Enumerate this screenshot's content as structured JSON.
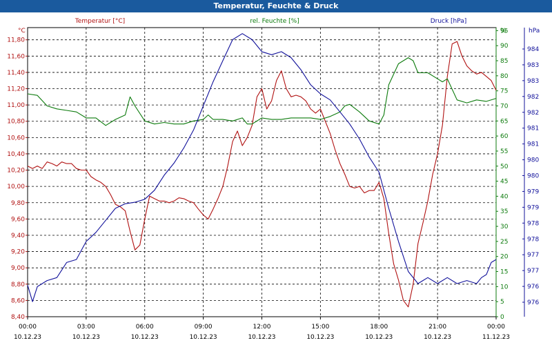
{
  "window": {
    "title": "Temperatur, Feuchte & Druck"
  },
  "colors": {
    "temperature": "#b01010",
    "humidity": "#0b7a0b",
    "pressure": "#10109a",
    "titlebar": "#1a5a9e"
  },
  "chart_data": {
    "type": "line",
    "title": "Temperatur, Feuchte & Druck",
    "grid": true,
    "x_ticks": [
      {
        "time": "00:00",
        "date": "10.12.23"
      },
      {
        "time": "03:00",
        "date": "10.12.23"
      },
      {
        "time": "06:00",
        "date": "10.12.23"
      },
      {
        "time": "09:00",
        "date": "10.12.23"
      },
      {
        "time": "12:00",
        "date": "10.12.23"
      },
      {
        "time": "15:00",
        "date": "10.12.23"
      },
      {
        "time": "18:00",
        "date": "10.12.23"
      },
      {
        "time": "21:00",
        "date": "10.12.23"
      },
      {
        "time": "00:00",
        "date": "11.12.23"
      }
    ],
    "axes": {
      "temperature": {
        "unit": "°C",
        "ylim": [
          8.4,
          11.95
        ],
        "ticks": [
          "8,40",
          "8,60",
          "8,80",
          "9,00",
          "9,20",
          "9,40",
          "9,60",
          "9,80",
          "10,00",
          "10,20",
          "10,40",
          "10,60",
          "10,80",
          "11,00",
          "11,20",
          "11,40",
          "11,60",
          "11,80"
        ]
      },
      "humidity": {
        "unit": "%",
        "ylim": [
          0,
          96
        ],
        "ticks": [
          "0",
          "5",
          "10",
          "15",
          "20",
          "25",
          "30",
          "35",
          "40",
          "45",
          "50",
          "55",
          "60",
          "65",
          "70",
          "75",
          "80",
          "85",
          "90",
          "95"
        ]
      },
      "pressure": {
        "unit": "hPa",
        "ticks": [
          "976",
          "976",
          "977",
          "977",
          "978",
          "978",
          "979",
          "979",
          "980",
          "980",
          "981",
          "981",
          "982",
          "982",
          "983",
          "983",
          "984"
        ]
      }
    },
    "series": [
      {
        "name": "Temperatur [°C]",
        "axis": "temperature",
        "points": [
          [
            0,
            10.25
          ],
          [
            0.25,
            10.22
          ],
          [
            0.5,
            10.25
          ],
          [
            0.75,
            10.22
          ],
          [
            1,
            10.3
          ],
          [
            1.25,
            10.28
          ],
          [
            1.5,
            10.25
          ],
          [
            1.75,
            10.3
          ],
          [
            2,
            10.28
          ],
          [
            2.25,
            10.28
          ],
          [
            2.5,
            10.22
          ],
          [
            2.75,
            10.2
          ],
          [
            3,
            10.2
          ],
          [
            3.25,
            10.12
          ],
          [
            3.5,
            10.08
          ],
          [
            3.75,
            10.05
          ],
          [
            4,
            10.0
          ],
          [
            4.25,
            9.9
          ],
          [
            4.5,
            9.78
          ],
          [
            4.75,
            9.75
          ],
          [
            5,
            9.7
          ],
          [
            5.25,
            9.45
          ],
          [
            5.5,
            9.22
          ],
          [
            5.75,
            9.28
          ],
          [
            6,
            9.6
          ],
          [
            6.25,
            9.88
          ],
          [
            6.5,
            9.85
          ],
          [
            6.75,
            9.82
          ],
          [
            7,
            9.82
          ],
          [
            7.25,
            9.8
          ],
          [
            7.5,
            9.82
          ],
          [
            7.75,
            9.86
          ],
          [
            8,
            9.85
          ],
          [
            8.25,
            9.82
          ],
          [
            8.5,
            9.8
          ],
          [
            8.75,
            9.72
          ],
          [
            9,
            9.65
          ],
          [
            9.25,
            9.6
          ],
          [
            9.5,
            9.72
          ],
          [
            9.75,
            9.85
          ],
          [
            10,
            10.0
          ],
          [
            10.25,
            10.25
          ],
          [
            10.5,
            10.55
          ],
          [
            10.75,
            10.68
          ],
          [
            11,
            10.5
          ],
          [
            11.25,
            10.6
          ],
          [
            11.5,
            10.75
          ],
          [
            11.75,
            11.1
          ],
          [
            12,
            11.2
          ],
          [
            12.25,
            10.95
          ],
          [
            12.5,
            11.05
          ],
          [
            12.75,
            11.3
          ],
          [
            13,
            11.42
          ],
          [
            13.25,
            11.2
          ],
          [
            13.5,
            11.1
          ],
          [
            13.75,
            11.12
          ],
          [
            14,
            11.1
          ],
          [
            14.25,
            11.05
          ],
          [
            14.5,
            10.95
          ],
          [
            14.75,
            10.9
          ],
          [
            15,
            10.95
          ],
          [
            15.25,
            10.8
          ],
          [
            15.5,
            10.65
          ],
          [
            15.75,
            10.45
          ],
          [
            16,
            10.28
          ],
          [
            16.25,
            10.15
          ],
          [
            16.5,
            10.0
          ],
          [
            16.75,
            9.98
          ],
          [
            17,
            10.0
          ],
          [
            17.25,
            9.92
          ],
          [
            17.5,
            9.95
          ],
          [
            17.75,
            9.95
          ],
          [
            18,
            10.05
          ],
          [
            18.25,
            9.85
          ],
          [
            18.5,
            9.42
          ],
          [
            18.75,
            9.05
          ],
          [
            19,
            8.85
          ],
          [
            19.25,
            8.6
          ],
          [
            19.5,
            8.52
          ],
          [
            19.75,
            8.8
          ],
          [
            20,
            9.3
          ],
          [
            20.25,
            9.55
          ],
          [
            20.5,
            9.82
          ],
          [
            20.75,
            10.15
          ],
          [
            21,
            10.4
          ],
          [
            21.25,
            10.75
          ],
          [
            21.5,
            11.35
          ],
          [
            21.75,
            11.75
          ],
          [
            22,
            11.78
          ],
          [
            22.25,
            11.6
          ],
          [
            22.5,
            11.48
          ],
          [
            22.75,
            11.42
          ],
          [
            23,
            11.38
          ],
          [
            23.25,
            11.4
          ],
          [
            23.5,
            11.35
          ],
          [
            23.75,
            11.3
          ],
          [
            24,
            11.18
          ]
        ]
      },
      {
        "name": "rel. Feuchte [%]",
        "axis": "humidity",
        "points": [
          [
            0,
            74
          ],
          [
            0.5,
            73.5
          ],
          [
            1,
            70
          ],
          [
            1.5,
            69
          ],
          [
            2,
            68.5
          ],
          [
            2.5,
            68
          ],
          [
            3,
            66
          ],
          [
            3.5,
            66
          ],
          [
            4,
            63.5
          ],
          [
            4.5,
            65.5
          ],
          [
            5,
            67
          ],
          [
            5.25,
            73
          ],
          [
            5.5,
            70
          ],
          [
            6,
            65
          ],
          [
            6.5,
            64
          ],
          [
            7,
            64.5
          ],
          [
            7.5,
            64
          ],
          [
            8,
            64
          ],
          [
            8.5,
            65
          ],
          [
            9,
            65.5
          ],
          [
            9.25,
            67
          ],
          [
            9.5,
            65.5
          ],
          [
            10,
            65.5
          ],
          [
            10.5,
            65
          ],
          [
            11,
            66
          ],
          [
            11.25,
            64
          ],
          [
            11.5,
            64
          ],
          [
            12,
            66
          ],
          [
            12.5,
            65.5
          ],
          [
            13,
            65.5
          ],
          [
            13.5,
            66
          ],
          [
            14,
            66
          ],
          [
            14.5,
            66
          ],
          [
            15,
            65.5
          ],
          [
            15.5,
            66.5
          ],
          [
            16,
            68
          ],
          [
            16.25,
            70
          ],
          [
            16.5,
            70.5
          ],
          [
            17,
            68
          ],
          [
            17.5,
            65
          ],
          [
            18,
            64
          ],
          [
            18.25,
            67
          ],
          [
            18.5,
            77
          ],
          [
            19,
            84
          ],
          [
            19.5,
            86
          ],
          [
            19.75,
            85
          ],
          [
            20,
            81
          ],
          [
            20.5,
            81
          ],
          [
            21,
            79
          ],
          [
            21.25,
            78
          ],
          [
            21.5,
            79
          ],
          [
            22,
            72
          ],
          [
            22.5,
            71
          ],
          [
            23,
            72
          ],
          [
            23.5,
            71.5
          ],
          [
            24,
            72.5
          ]
        ]
      },
      {
        "name": "Druck [hPa]",
        "axis": "pressure",
        "points": [
          [
            0,
            10.5
          ],
          [
            0.25,
            5
          ],
          [
            0.5,
            10
          ],
          [
            1,
            12
          ],
          [
            1.5,
            13
          ],
          [
            2,
            18
          ],
          [
            2.5,
            19
          ],
          [
            3,
            25
          ],
          [
            3.5,
            28
          ],
          [
            4,
            32
          ],
          [
            4.5,
            36
          ],
          [
            5,
            37.5
          ],
          [
            5.5,
            38
          ],
          [
            6,
            39
          ],
          [
            6.5,
            42
          ],
          [
            7,
            47
          ],
          [
            7.5,
            51
          ],
          [
            8,
            56
          ],
          [
            8.5,
            62
          ],
          [
            9,
            70
          ],
          [
            9.5,
            78
          ],
          [
            10,
            85
          ],
          [
            10.5,
            92
          ],
          [
            11,
            94
          ],
          [
            11.5,
            92
          ],
          [
            12,
            88
          ],
          [
            12.5,
            87
          ],
          [
            13,
            88
          ],
          [
            13.5,
            86
          ],
          [
            14,
            82
          ],
          [
            14.5,
            77
          ],
          [
            15,
            74
          ],
          [
            15.5,
            72
          ],
          [
            16,
            68
          ],
          [
            16.5,
            64
          ],
          [
            17,
            59
          ],
          [
            17.5,
            53
          ],
          [
            18,
            48
          ],
          [
            18.5,
            36
          ],
          [
            19,
            25
          ],
          [
            19.5,
            15
          ],
          [
            20,
            11
          ],
          [
            20.25,
            12
          ],
          [
            20.5,
            13
          ],
          [
            21,
            11
          ],
          [
            21.5,
            13
          ],
          [
            22,
            11
          ],
          [
            22.5,
            12
          ],
          [
            23,
            11
          ],
          [
            23.25,
            13
          ],
          [
            23.5,
            14
          ],
          [
            23.75,
            18
          ],
          [
            24,
            19
          ]
        ]
      }
    ]
  }
}
